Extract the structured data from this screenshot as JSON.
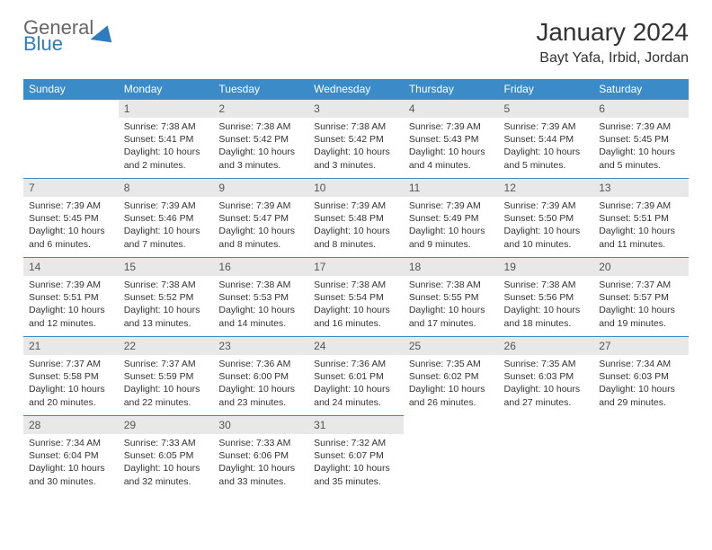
{
  "logo": {
    "general": "General",
    "blue": "Blue"
  },
  "header": {
    "month_title": "January 2024",
    "location": "Bayt Yafa, Irbid, Jordan"
  },
  "weekdays": [
    "Sunday",
    "Monday",
    "Tuesday",
    "Wednesday",
    "Thursday",
    "Friday",
    "Saturday"
  ],
  "colors": {
    "header_bg": "#3b8bc8",
    "header_text": "#ffffff",
    "daynum_bg": "#e8e8e8",
    "border": "#3b8bc8",
    "text": "#333333",
    "logo_blue": "#2f7bbf",
    "logo_gray": "#666666",
    "page_bg": "#ffffff"
  },
  "layout": {
    "start_weekday_index": 1,
    "days_in_month": 31,
    "font_family": "Arial",
    "title_fontsize_pt": 21,
    "location_fontsize_pt": 12,
    "weekday_fontsize_pt": 9,
    "daynum_fontsize_pt": 9,
    "info_fontsize_pt": 8
  },
  "days": [
    {
      "n": 1,
      "sunrise": "7:38 AM",
      "sunset": "5:41 PM",
      "daylight": "10 hours and 2 minutes."
    },
    {
      "n": 2,
      "sunrise": "7:38 AM",
      "sunset": "5:42 PM",
      "daylight": "10 hours and 3 minutes."
    },
    {
      "n": 3,
      "sunrise": "7:38 AM",
      "sunset": "5:42 PM",
      "daylight": "10 hours and 3 minutes."
    },
    {
      "n": 4,
      "sunrise": "7:39 AM",
      "sunset": "5:43 PM",
      "daylight": "10 hours and 4 minutes."
    },
    {
      "n": 5,
      "sunrise": "7:39 AM",
      "sunset": "5:44 PM",
      "daylight": "10 hours and 5 minutes."
    },
    {
      "n": 6,
      "sunrise": "7:39 AM",
      "sunset": "5:45 PM",
      "daylight": "10 hours and 5 minutes."
    },
    {
      "n": 7,
      "sunrise": "7:39 AM",
      "sunset": "5:45 PM",
      "daylight": "10 hours and 6 minutes."
    },
    {
      "n": 8,
      "sunrise": "7:39 AM",
      "sunset": "5:46 PM",
      "daylight": "10 hours and 7 minutes."
    },
    {
      "n": 9,
      "sunrise": "7:39 AM",
      "sunset": "5:47 PM",
      "daylight": "10 hours and 8 minutes."
    },
    {
      "n": 10,
      "sunrise": "7:39 AM",
      "sunset": "5:48 PM",
      "daylight": "10 hours and 8 minutes."
    },
    {
      "n": 11,
      "sunrise": "7:39 AM",
      "sunset": "5:49 PM",
      "daylight": "10 hours and 9 minutes."
    },
    {
      "n": 12,
      "sunrise": "7:39 AM",
      "sunset": "5:50 PM",
      "daylight": "10 hours and 10 minutes."
    },
    {
      "n": 13,
      "sunrise": "7:39 AM",
      "sunset": "5:51 PM",
      "daylight": "10 hours and 11 minutes."
    },
    {
      "n": 14,
      "sunrise": "7:39 AM",
      "sunset": "5:51 PM",
      "daylight": "10 hours and 12 minutes."
    },
    {
      "n": 15,
      "sunrise": "7:38 AM",
      "sunset": "5:52 PM",
      "daylight": "10 hours and 13 minutes."
    },
    {
      "n": 16,
      "sunrise": "7:38 AM",
      "sunset": "5:53 PM",
      "daylight": "10 hours and 14 minutes."
    },
    {
      "n": 17,
      "sunrise": "7:38 AM",
      "sunset": "5:54 PM",
      "daylight": "10 hours and 16 minutes."
    },
    {
      "n": 18,
      "sunrise": "7:38 AM",
      "sunset": "5:55 PM",
      "daylight": "10 hours and 17 minutes."
    },
    {
      "n": 19,
      "sunrise": "7:38 AM",
      "sunset": "5:56 PM",
      "daylight": "10 hours and 18 minutes."
    },
    {
      "n": 20,
      "sunrise": "7:37 AM",
      "sunset": "5:57 PM",
      "daylight": "10 hours and 19 minutes."
    },
    {
      "n": 21,
      "sunrise": "7:37 AM",
      "sunset": "5:58 PM",
      "daylight": "10 hours and 20 minutes."
    },
    {
      "n": 22,
      "sunrise": "7:37 AM",
      "sunset": "5:59 PM",
      "daylight": "10 hours and 22 minutes."
    },
    {
      "n": 23,
      "sunrise": "7:36 AM",
      "sunset": "6:00 PM",
      "daylight": "10 hours and 23 minutes."
    },
    {
      "n": 24,
      "sunrise": "7:36 AM",
      "sunset": "6:01 PM",
      "daylight": "10 hours and 24 minutes."
    },
    {
      "n": 25,
      "sunrise": "7:35 AM",
      "sunset": "6:02 PM",
      "daylight": "10 hours and 26 minutes."
    },
    {
      "n": 26,
      "sunrise": "7:35 AM",
      "sunset": "6:03 PM",
      "daylight": "10 hours and 27 minutes."
    },
    {
      "n": 27,
      "sunrise": "7:34 AM",
      "sunset": "6:03 PM",
      "daylight": "10 hours and 29 minutes."
    },
    {
      "n": 28,
      "sunrise": "7:34 AM",
      "sunset": "6:04 PM",
      "daylight": "10 hours and 30 minutes."
    },
    {
      "n": 29,
      "sunrise": "7:33 AM",
      "sunset": "6:05 PM",
      "daylight": "10 hours and 32 minutes."
    },
    {
      "n": 30,
      "sunrise": "7:33 AM",
      "sunset": "6:06 PM",
      "daylight": "10 hours and 33 minutes."
    },
    {
      "n": 31,
      "sunrise": "7:32 AM",
      "sunset": "6:07 PM",
      "daylight": "10 hours and 35 minutes."
    }
  ],
  "labels": {
    "sunrise_prefix": "Sunrise: ",
    "sunset_prefix": "Sunset: ",
    "daylight_prefix": "Daylight: "
  }
}
